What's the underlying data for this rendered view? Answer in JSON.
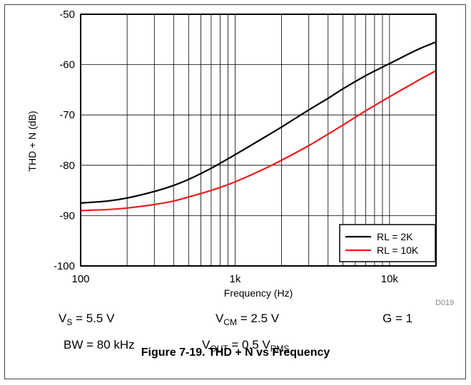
{
  "chart_data": {
    "type": "line",
    "title": "",
    "xlabel": "Frequency (Hz)",
    "ylabel": "THD + N (dB)",
    "x_scale": "log",
    "xlim": [
      100,
      20000
    ],
    "ylim": [
      -100,
      -50
    ],
    "grid": true,
    "legend_position": "bottom-right",
    "x_ticks": [
      {
        "value": 100,
        "label": "100"
      },
      {
        "value": 1000,
        "label": "1k"
      },
      {
        "value": 10000,
        "label": "10k"
      }
    ],
    "y_ticks": [
      {
        "value": -50,
        "label": "-50"
      },
      {
        "value": -60,
        "label": "-60"
      },
      {
        "value": -70,
        "label": "-70"
      },
      {
        "value": -80,
        "label": "-80"
      },
      {
        "value": -90,
        "label": "-90"
      },
      {
        "value": -100,
        "label": "-100"
      }
    ],
    "series": [
      {
        "name": "RL = 2K",
        "color": "#000000",
        "x": [
          100,
          150,
          200,
          300,
          400,
          500,
          700,
          1000,
          1500,
          2000,
          3000,
          4000,
          5000,
          7000,
          10000,
          15000,
          20000
        ],
        "y": [
          -87.5,
          -87.1,
          -86.5,
          -85.2,
          -84.0,
          -82.8,
          -80.6,
          -77.9,
          -74.7,
          -72.4,
          -69.0,
          -66.7,
          -64.8,
          -62.2,
          -59.8,
          -57.1,
          -55.5
        ]
      },
      {
        "name": "RL = 10K",
        "color": "#ee1c1c",
        "x": [
          100,
          150,
          200,
          300,
          400,
          500,
          700,
          1000,
          1500,
          2000,
          3000,
          4000,
          5000,
          7000,
          10000,
          15000,
          20000
        ],
        "y": [
          -89.0,
          -88.8,
          -88.5,
          -87.8,
          -87.1,
          -86.3,
          -85.0,
          -83.3,
          -80.9,
          -79.0,
          -76.1,
          -73.8,
          -72.0,
          -69.2,
          -66.4,
          -63.3,
          -61.2
        ]
      }
    ]
  },
  "doc_id": "D019",
  "conditions": {
    "vs_main": "V",
    "vs_sub": "S",
    "vs_value": " = 5.5 V",
    "vcm_main": "V",
    "vcm_sub": "CM",
    "vcm_value": " = 2.5 V",
    "gain": "G = 1",
    "bw": "BW = 80 kHz",
    "vout_main": "V",
    "vout_sub": "OUT",
    "vout_value": " = 0.5 V",
    "vout_unit_sub": "RMS"
  },
  "caption": "Figure 7-19. THD + N vs Frequency"
}
